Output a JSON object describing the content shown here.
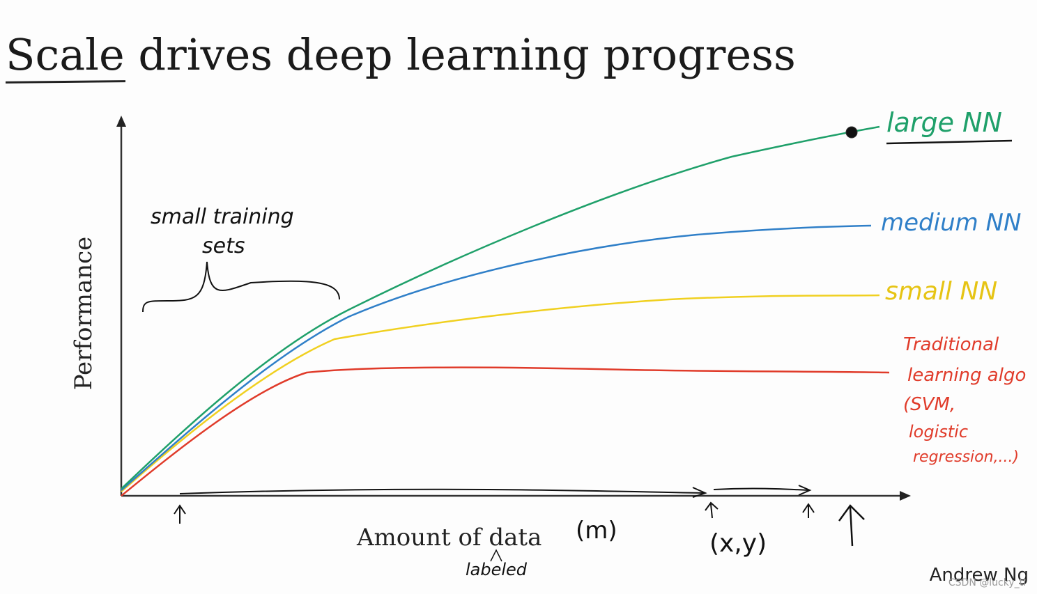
{
  "title": "Scale drives deep learning progress",
  "axes": {
    "y_label": "Performance",
    "x_label": "Amount of data"
  },
  "curves": [
    {
      "key": "large",
      "label": "large NN",
      "color": "#1fa06a"
    },
    {
      "key": "medium",
      "label": "medium NN",
      "color": "#2f7fc8"
    },
    {
      "key": "small",
      "label": "small NN",
      "color": "#f0d020"
    },
    {
      "key": "traditional",
      "label": "Traditional learning algo (SVM, logistic regression,...)",
      "color": "#e03b2a"
    }
  ],
  "annotations": {
    "small_training_sets_line1": "small training",
    "small_training_sets_line2": "sets",
    "m_label": "(m)",
    "labeled_label": "labeled",
    "xy_label": "(x,y)",
    "trad_line1": "Traditional",
    "trad_line2": "learning algo",
    "trad_line3": "(SVM,",
    "trad_line4": "logistic",
    "trad_line5": "regression,...)"
  },
  "credit": "Andrew Ng",
  "watermark": "CSDN @lucky_tl"
}
